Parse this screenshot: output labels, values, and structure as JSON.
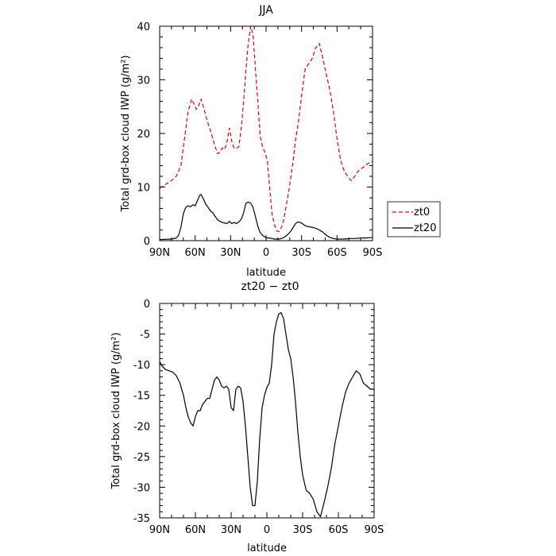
{
  "chart_data": [
    {
      "type": "line",
      "title": "JJA",
      "xlabel": "latitude",
      "ylabel": "Total grd-box cloud IWP (g/m²)",
      "xlim": [
        90,
        -90
      ],
      "ylim": [
        0,
        40
      ],
      "xticks": [
        {
          "value": 90,
          "label": "90N"
        },
        {
          "value": 60,
          "label": "60N"
        },
        {
          "value": 30,
          "label": "30N"
        },
        {
          "value": 0,
          "label": "0"
        },
        {
          "value": -30,
          "label": "30S"
        },
        {
          "value": -60,
          "label": "60S"
        },
        {
          "value": -90,
          "label": "90S"
        }
      ],
      "yticks": [
        0,
        10,
        20,
        30,
        40
      ],
      "legend_position": "right",
      "series": [
        {
          "name": "zt0",
          "color": "#e8000b",
          "dash": "dashed",
          "x": [
            90,
            85,
            80,
            76,
            72,
            69,
            66,
            63,
            61,
            59,
            57,
            55,
            53,
            50,
            47,
            45,
            43,
            41,
            39,
            37,
            35,
            33,
            31,
            29,
            27,
            25,
            23,
            21,
            19,
            17,
            15,
            13,
            11,
            9,
            7,
            5,
            3,
            1,
            -1,
            -3,
            -5,
            -7,
            -9,
            -11,
            -13,
            -15,
            -17,
            -19,
            -21,
            -23,
            -25,
            -27,
            -30,
            -33,
            -36,
            -39,
            -42,
            -45,
            -48,
            -51,
            -54,
            -57,
            -60,
            -63,
            -66,
            -69,
            -72,
            -75,
            -78,
            -81,
            -84,
            -87,
            -90
          ],
          "y": [
            9.8,
            10.5,
            11.2,
            12,
            14,
            19,
            24,
            26.4,
            25.5,
            24.5,
            25.2,
            26.4,
            25,
            22.5,
            20.5,
            19,
            17.5,
            16.2,
            16.5,
            17.3,
            17,
            18.5,
            21,
            18.5,
            17.2,
            17.3,
            17.5,
            21,
            26,
            32,
            37,
            40,
            38.5,
            32,
            26,
            19.5,
            17.5,
            16.5,
            15,
            10,
            5,
            3,
            1.8,
            1.7,
            2.5,
            4,
            6.5,
            9,
            12,
            15,
            19,
            21.5,
            27,
            32,
            33,
            34,
            36,
            36.8,
            34,
            31,
            28,
            24,
            19,
            15,
            13,
            12,
            11.2,
            12,
            13,
            13.5,
            14,
            14.5,
            14.8
          ]
        },
        {
          "name": "zt20",
          "color": "#000000",
          "dash": "solid",
          "x": [
            90,
            85,
            80,
            76,
            74,
            72,
            70,
            68,
            66,
            64,
            62,
            60,
            58,
            56,
            55,
            53,
            51,
            49,
            47,
            45,
            43,
            41,
            39,
            37,
            35,
            33,
            31,
            29,
            27,
            25,
            23,
            21,
            19,
            17,
            15,
            13,
            11,
            9,
            7,
            5,
            3,
            1,
            -1,
            -3,
            -5,
            -7,
            -9,
            -11,
            -13,
            -15,
            -17,
            -19,
            -21,
            -23,
            -25,
            -27,
            -30,
            -33,
            -36,
            -39,
            -42,
            -45,
            -48,
            -51,
            -54,
            -57,
            -60,
            -63,
            -66,
            -69,
            -72,
            -75,
            -78,
            -81,
            -84,
            -87,
            -90
          ],
          "y": [
            0.2,
            0.25,
            0.3,
            0.5,
            1,
            2.5,
            5,
            6.2,
            6.5,
            6.3,
            6.7,
            6.5,
            7.5,
            8.5,
            8.6,
            7.8,
            6.8,
            6.2,
            5.5,
            5.2,
            4.5,
            3.9,
            3.6,
            3.4,
            3.3,
            3.2,
            3.6,
            3.2,
            3.4,
            3.2,
            3.5,
            4,
            5.2,
            7,
            7.2,
            7,
            6.2,
            4.5,
            2.7,
            1.5,
            1,
            0.7,
            0.5,
            0.5,
            0.4,
            0.3,
            0.3,
            0.3,
            0.4,
            0.6,
            0.9,
            1.3,
            1.8,
            2.5,
            3.2,
            3.5,
            3.3,
            2.8,
            2.6,
            2.5,
            2.3,
            2,
            1.6,
            1,
            0.6,
            0.4,
            0.3,
            0.3,
            0.3,
            0.35,
            0.4,
            0.4,
            0.45,
            0.5,
            0.5,
            0.55,
            0.6
          ]
        }
      ]
    },
    {
      "type": "line",
      "title": "zt20 − zt0",
      "xlabel": "latitude",
      "ylabel": "Total grd-box cloud IWP (g/m²)",
      "xlim": [
        90,
        -90
      ],
      "ylim": [
        -35,
        0
      ],
      "xticks": [
        {
          "value": 90,
          "label": "90N"
        },
        {
          "value": 60,
          "label": "60N"
        },
        {
          "value": 30,
          "label": "30N"
        },
        {
          "value": 0,
          "label": "0"
        },
        {
          "value": -30,
          "label": "30S"
        },
        {
          "value": -60,
          "label": "60S"
        },
        {
          "value": -90,
          "label": "90S"
        }
      ],
      "yticks": [
        0,
        -5,
        -10,
        -15,
        -20,
        -25,
        -30,
        -35
      ],
      "series": [
        {
          "color": "#000000",
          "dash": "solid",
          "x": [
            90,
            88,
            85,
            82,
            79,
            76,
            73,
            70,
            68,
            66,
            64,
            62,
            60,
            58,
            56,
            54,
            52,
            50,
            48,
            46,
            44,
            42,
            40,
            38,
            36,
            34,
            32,
            30,
            28,
            26,
            24,
            22,
            20,
            18,
            16,
            14,
            12,
            10,
            8,
            6,
            4,
            2,
            0,
            -2,
            -4,
            -6,
            -8,
            -10,
            -12,
            -14,
            -16,
            -18,
            -20,
            -22,
            -24,
            -26,
            -28,
            -30,
            -33,
            -36,
            -39,
            -42,
            -45,
            -48,
            -51,
            -54,
            -57,
            -60,
            -63,
            -66,
            -69,
            -72,
            -75,
            -78,
            -81,
            -84,
            -87,
            -90
          ],
          "y": [
            -9.5,
            -10.2,
            -10.8,
            -11,
            -11.2,
            -11.8,
            -13,
            -15,
            -17,
            -18.5,
            -19.5,
            -20,
            -18.5,
            -17.5,
            -17.5,
            -16.5,
            -16,
            -15.5,
            -15.5,
            -14,
            -12.5,
            -12,
            -12.5,
            -13.5,
            -13.8,
            -13.5,
            -14,
            -17,
            -17.5,
            -14,
            -13.5,
            -13.8,
            -16,
            -20,
            -25,
            -30,
            -33,
            -33,
            -29,
            -22,
            -17,
            -15,
            -13.7,
            -13,
            -10,
            -5,
            -3,
            -1.7,
            -1.5,
            -2.5,
            -5,
            -7.5,
            -9,
            -12,
            -16,
            -21,
            -25,
            -28,
            -30.5,
            -31,
            -32,
            -34,
            -34.8,
            -32.5,
            -30,
            -27,
            -23,
            -20,
            -17,
            -14.5,
            -13,
            -12,
            -11,
            -11.5,
            -13,
            -13.5,
            -14,
            -14
          ]
        }
      ]
    }
  ]
}
